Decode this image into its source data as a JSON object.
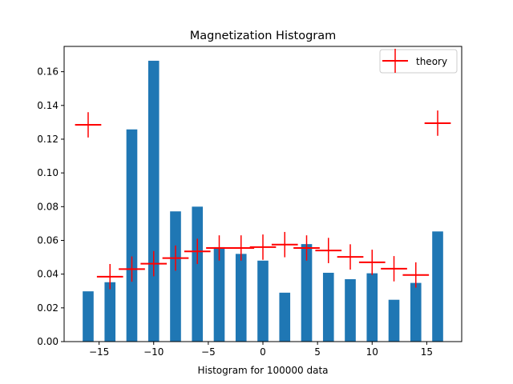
{
  "chart_data": {
    "type": "bar",
    "title": "Magnetization Histogram",
    "xlabel": "Histogram for 100000 data",
    "ylabel": "",
    "xlim": [
      -18.2,
      18.2
    ],
    "ylim": [
      0,
      0.175
    ],
    "xticks": [
      -15,
      -10,
      -5,
      0,
      5,
      10,
      15
    ],
    "xtick_labels": [
      "−15",
      "−10",
      "−5",
      "0",
      "5",
      "10",
      "15"
    ],
    "yticks": [
      0,
      0.02,
      0.04,
      0.06,
      0.08,
      0.1,
      0.12,
      0.14,
      0.16
    ],
    "ytick_labels": [
      "0.00",
      "0.02",
      "0.04",
      "0.06",
      "0.08",
      "0.10",
      "0.12",
      "0.14",
      "0.16"
    ],
    "grid": false,
    "legend_position": "top-right",
    "bar_width": 1.0,
    "series": [
      {
        "kind": "bar",
        "color": "#1f77b4",
        "x": [
          -16,
          -14,
          -12,
          -10,
          -8,
          -6,
          -4,
          -2,
          0,
          2,
          4,
          6,
          8,
          10,
          12,
          14,
          16
        ],
        "values": [
          0.0298,
          0.0352,
          0.1258,
          0.1665,
          0.0772,
          0.08,
          0.056,
          0.052,
          0.048,
          0.029,
          0.0578,
          0.0408,
          0.037,
          0.0405,
          0.0248,
          0.0348,
          0.0653
        ]
      },
      {
        "kind": "errorbar",
        "name": "theory",
        "color": "#ff0000",
        "x": [
          -16,
          -14,
          -12,
          -10,
          -8,
          -6,
          -4,
          -2,
          0,
          2,
          4,
          6,
          8,
          10,
          12,
          14,
          16
        ],
        "values": [
          0.1285,
          0.0385,
          0.043,
          0.0462,
          0.0495,
          0.0535,
          0.0555,
          0.0555,
          0.056,
          0.0575,
          0.0555,
          0.054,
          0.0502,
          0.047,
          0.0432,
          0.0395,
          0.1295
        ],
        "xerr": 1.2,
        "yerr": 0.0075
      }
    ],
    "legend": {
      "label": "theory"
    }
  }
}
